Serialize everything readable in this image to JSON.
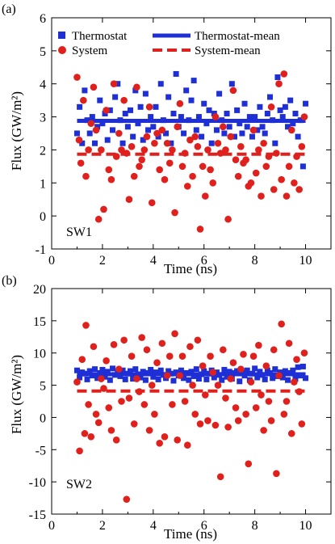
{
  "chart_data": [
    {
      "panel_label": "(a)",
      "type": "scatter",
      "annotation": "SW1",
      "xlabel": "Time (ns)",
      "ylabel": "Flux (GW/m²)",
      "xlim": [
        0,
        11
      ],
      "ylim": [
        -1,
        6
      ],
      "xticks": [
        0,
        2,
        4,
        6,
        8,
        10
      ],
      "yticks": [
        -1,
        0,
        1,
        2,
        3,
        4,
        5,
        6
      ],
      "legend_position": "top",
      "colors": {
        "thermostat": "#1f2fd6",
        "system": "#e0201c"
      },
      "series": [
        {
          "name": "Thermostat",
          "marker": "square",
          "x": [
            1.0,
            1.1,
            1.2,
            1.3,
            1.4,
            1.5,
            1.6,
            1.7,
            1.8,
            1.9,
            2.0,
            2.1,
            2.2,
            2.3,
            2.4,
            2.5,
            2.6,
            2.7,
            2.8,
            2.9,
            3.0,
            3.1,
            3.2,
            3.3,
            3.4,
            3.5,
            3.6,
            3.7,
            3.8,
            3.9,
            4.0,
            4.1,
            4.2,
            4.3,
            4.4,
            4.5,
            4.6,
            4.7,
            4.8,
            4.9,
            5.0,
            5.1,
            5.2,
            5.3,
            5.4,
            5.5,
            5.6,
            5.7,
            5.8,
            5.9,
            6.0,
            6.1,
            6.2,
            6.3,
            6.4,
            6.5,
            6.6,
            6.7,
            6.8,
            6.9,
            7.0,
            7.1,
            7.2,
            7.3,
            7.4,
            7.5,
            7.6,
            7.7,
            7.8,
            7.9,
            8.0,
            8.1,
            8.2,
            8.3,
            8.4,
            8.5,
            8.6,
            8.7,
            8.8,
            8.9,
            9.0,
            9.1,
            9.2,
            9.3,
            9.4,
            9.5,
            9.6,
            9.7,
            9.8,
            9.9,
            10.0
          ],
          "y": [
            2.5,
            3.3,
            2.2,
            3.8,
            2.9,
            2.5,
            3.0,
            2.2,
            2.7,
            3.5,
            2.8,
            3.1,
            2.3,
            3.2,
            2.6,
            3.6,
            4.0,
            2.9,
            2.2,
            3.1,
            2.7,
            3.2,
            2.4,
            3.8,
            2.8,
            3.3,
            2.3,
            3.7,
            2.6,
            3.0,
            2.7,
            3.3,
            2.4,
            4.0,
            2.9,
            2.5,
            3.6,
            2.2,
            3.1,
            4.3,
            2.7,
            3.0,
            2.5,
            3.8,
            2.9,
            3.5,
            4.1,
            2.6,
            3.0,
            2.4,
            3.4,
            2.8,
            3.2,
            2.2,
            3.1,
            2.6,
            3.7,
            2.9,
            2.5,
            3.1,
            2.7,
            4.0,
            2.4,
            3.2,
            2.8,
            2.5,
            3.4,
            2.7,
            3.0,
            2.4,
            3.0,
            2.6,
            3.3,
            2.7,
            2.5,
            3.1,
            3.6,
            2.9,
            2.2,
            4.2,
            3.2,
            3.0,
            3.3,
            2.7,
            3.5,
            2.8,
            3.1,
            2.4,
            2.9,
            1.5,
            3.4
          ]
        },
        {
          "name": "System",
          "marker": "circle",
          "x": [
            1.0,
            1.08,
            1.15,
            1.25,
            1.35,
            1.45,
            1.55,
            1.65,
            1.75,
            1.85,
            1.95,
            2.05,
            2.15,
            2.25,
            2.35,
            2.45,
            2.55,
            2.65,
            2.75,
            2.85,
            2.95,
            3.05,
            3.15,
            3.25,
            3.35,
            3.45,
            3.55,
            3.65,
            3.75,
            3.85,
            3.95,
            4.05,
            4.15,
            4.25,
            4.35,
            4.45,
            4.55,
            4.65,
            4.75,
            4.85,
            4.95,
            5.05,
            5.15,
            5.25,
            5.35,
            5.45,
            5.55,
            5.65,
            5.75,
            5.85,
            5.95,
            6.05,
            6.15,
            6.25,
            6.35,
            6.45,
            6.55,
            6.65,
            6.75,
            6.85,
            6.95,
            7.05,
            7.15,
            7.25,
            7.35,
            7.45,
            7.55,
            7.65,
            7.75,
            7.85,
            7.95,
            8.05,
            8.15,
            8.25,
            8.35,
            8.45,
            8.55,
            8.65,
            8.75,
            8.85,
            8.95,
            9.05,
            9.15,
            9.25,
            9.35,
            9.45,
            9.55,
            9.65,
            9.75,
            9.85,
            9.95
          ],
          "y": [
            4.2,
            2.3,
            1.6,
            3.5,
            1.2,
            2.0,
            2.8,
            3.9,
            2.6,
            -0.1,
            2.0,
            0.2,
            3.2,
            1.4,
            1.1,
            4.0,
            1.8,
            2.5,
            2.0,
            3.5,
            1.9,
            0.5,
            2.1,
            1.2,
            3.9,
            1.5,
            1.7,
            2.0,
            2.4,
            3.3,
            0.4,
            2.2,
            2.5,
            1.4,
            2.6,
            1.1,
            2.2,
            1.6,
            2.0,
            0.1,
            2.7,
            3.4,
            1.5,
            1.9,
            0.9,
            2.3,
            1.2,
            2.4,
            2.1,
            -0.4,
            1.5,
            0.6,
            2.0,
            1.4,
            1.0,
            3.0,
            2.2,
            1.9,
            2.7,
            2.0,
            -0.1,
            2.4,
            3.8,
            1.7,
            1.2,
            2.1,
            1.6,
            1.7,
            0.9,
            1.0,
            2.6,
            1.3,
            2.0,
            0.6,
            2.2,
            1.5,
            1.8,
            3.3,
            0.8,
            1.9,
            4.0,
            1.1,
            4.3,
            0.6,
            1.5,
            2.6,
            1.0,
            1.8,
            0.8,
            2.1,
            3.0
          ]
        },
        {
          "name": "Thermostat-mean",
          "line_style": "solid",
          "x": [
            1,
            10
          ],
          "y": [
            2.88,
            2.88
          ]
        },
        {
          "name": "System-mean",
          "line_style": "dashed",
          "x": [
            1,
            10
          ],
          "y": [
            1.87,
            1.87
          ]
        }
      ]
    },
    {
      "panel_label": "(b)",
      "type": "scatter",
      "annotation": "SW2",
      "xlabel": "Time (ns)",
      "ylabel": "Flux (GW/m²)",
      "xlim": [
        0,
        11
      ],
      "ylim": [
        -15,
        20
      ],
      "xticks": [
        0,
        2,
        4,
        6,
        8,
        10
      ],
      "yticks": [
        -15,
        -10,
        -5,
        0,
        5,
        10,
        15,
        20
      ],
      "colors": {
        "thermostat": "#1f2fd6",
        "system": "#e0201c"
      },
      "series": [
        {
          "name": "Thermostat",
          "marker": "square",
          "x": [
            1.0,
            1.1,
            1.2,
            1.3,
            1.4,
            1.5,
            1.6,
            1.7,
            1.8,
            1.9,
            2.0,
            2.1,
            2.2,
            2.3,
            2.4,
            2.5,
            2.6,
            2.7,
            2.8,
            2.9,
            3.0,
            3.1,
            3.2,
            3.3,
            3.4,
            3.5,
            3.6,
            3.7,
            3.8,
            3.9,
            4.0,
            4.1,
            4.2,
            4.3,
            4.4,
            4.5,
            4.6,
            4.7,
            4.8,
            4.9,
            5.0,
            5.1,
            5.2,
            5.3,
            5.4,
            5.5,
            5.6,
            5.7,
            5.8,
            5.9,
            6.0,
            6.1,
            6.2,
            6.3,
            6.4,
            6.5,
            6.6,
            6.7,
            6.8,
            6.9,
            7.0,
            7.1,
            7.2,
            7.3,
            7.4,
            7.5,
            7.6,
            7.7,
            7.8,
            7.9,
            8.0,
            8.1,
            8.2,
            8.3,
            8.4,
            8.5,
            8.6,
            8.7,
            8.8,
            8.9,
            9.0,
            9.1,
            9.2,
            9.3,
            9.4,
            9.5,
            9.6,
            9.7,
            9.8,
            9.9,
            10.0
          ],
          "y": [
            7.3,
            6.2,
            7.0,
            6.8,
            5.9,
            7.2,
            6.5,
            7.5,
            6.1,
            6.9,
            7.4,
            6.3,
            7.1,
            5.8,
            7.6,
            6.6,
            7.0,
            6.4,
            7.3,
            5.9,
            6.8,
            7.2,
            6.0,
            7.5,
            6.7,
            6.2,
            7.1,
            5.8,
            6.9,
            7.4,
            6.3,
            7.0,
            5.9,
            7.3,
            6.6,
            6.1,
            7.2,
            6.8,
            5.7,
            7.0,
            6.5,
            7.3,
            6.1,
            6.9,
            5.8,
            7.1,
            6.4,
            7.5,
            6.0,
            6.7,
            7.2,
            5.9,
            6.8,
            7.3,
            6.2,
            7.0,
            6.6,
            5.8,
            7.4,
            6.3,
            7.1,
            6.0,
            6.9,
            7.2,
            5.6,
            7.0,
            6.5,
            7.3,
            5.8,
            6.8,
            7.6,
            6.2,
            7.1,
            6.6,
            5.9,
            7.3,
            6.9,
            6.1,
            7.5,
            6.4,
            7.0,
            6.2,
            7.2,
            5.8,
            6.9,
            7.3,
            6.0,
            7.8,
            6.5,
            7.9,
            6.1
          ]
        },
        {
          "name": "System",
          "marker": "circle",
          "x": [
            1.0,
            1.1,
            1.2,
            1.3,
            1.35,
            1.45,
            1.55,
            1.65,
            1.75,
            1.85,
            1.95,
            2.05,
            2.15,
            2.25,
            2.35,
            2.45,
            2.55,
            2.65,
            2.75,
            2.85,
            2.95,
            3.05,
            3.15,
            3.25,
            3.35,
            3.45,
            3.55,
            3.65,
            3.75,
            3.85,
            3.95,
            4.05,
            4.15,
            4.25,
            4.35,
            4.45,
            4.55,
            4.65,
            4.75,
            4.85,
            4.95,
            5.05,
            5.15,
            5.25,
            5.35,
            5.45,
            5.55,
            5.65,
            5.75,
            5.85,
            5.95,
            6.05,
            6.15,
            6.25,
            6.35,
            6.45,
            6.55,
            6.65,
            6.75,
            6.85,
            6.95,
            7.05,
            7.15,
            7.25,
            7.35,
            7.45,
            7.55,
            7.65,
            7.75,
            7.85,
            7.95,
            8.05,
            8.15,
            8.25,
            8.35,
            8.45,
            8.55,
            8.65,
            8.75,
            8.85,
            8.95,
            9.05,
            9.15,
            9.25,
            9.35,
            9.45,
            9.55,
            9.65,
            9.75,
            9.85,
            9.95
          ],
          "y": [
            5.5,
            -5.2,
            9.0,
            -2.5,
            14.3,
            2.0,
            -3.0,
            11.0,
            0.5,
            -0.8,
            6.0,
            4.5,
            8.8,
            1.5,
            -2.0,
            11.3,
            -3.5,
            7.5,
            2.5,
            12.0,
            -12.7,
            3.0,
            9.5,
            -1.0,
            6.0,
            4.0,
            12.4,
            2.0,
            10.5,
            -2.0,
            5.0,
            0.5,
            8.5,
            -4.0,
            11.5,
            -3.0,
            6.5,
            9.5,
            2.0,
            13.0,
            -3.5,
            6.5,
            9.5,
            2.5,
            -4.3,
            11.0,
            5.0,
            0.5,
            12.0,
            -1.0,
            8.0,
            3.5,
            -0.5,
            9.5,
            7.0,
            -1.2,
            5.0,
            -9.2,
            10.5,
            3.0,
            -1.5,
            6.0,
            8.5,
            1.5,
            -0.5,
            7.5,
            9.8,
            0.5,
            -7.2,
            5.5,
            9.5,
            1.5,
            11.2,
            3.5,
            -2.0,
            8.0,
            2.5,
            -0.5,
            10.5,
            -8.7,
            6.5,
            14.5,
            0.5,
            2.5,
            11.5,
            -2.5,
            5.5,
            9.0,
            4.0,
            -1.0,
            10.0
          ]
        },
        {
          "name": "Thermostat-mean",
          "line_style": "solid",
          "x": [
            1,
            10
          ],
          "y": [
            6.7,
            6.7
          ]
        },
        {
          "name": "System-mean",
          "line_style": "dashed",
          "x": [
            1,
            10
          ],
          "y": [
            4.1,
            4.1
          ]
        }
      ]
    }
  ]
}
